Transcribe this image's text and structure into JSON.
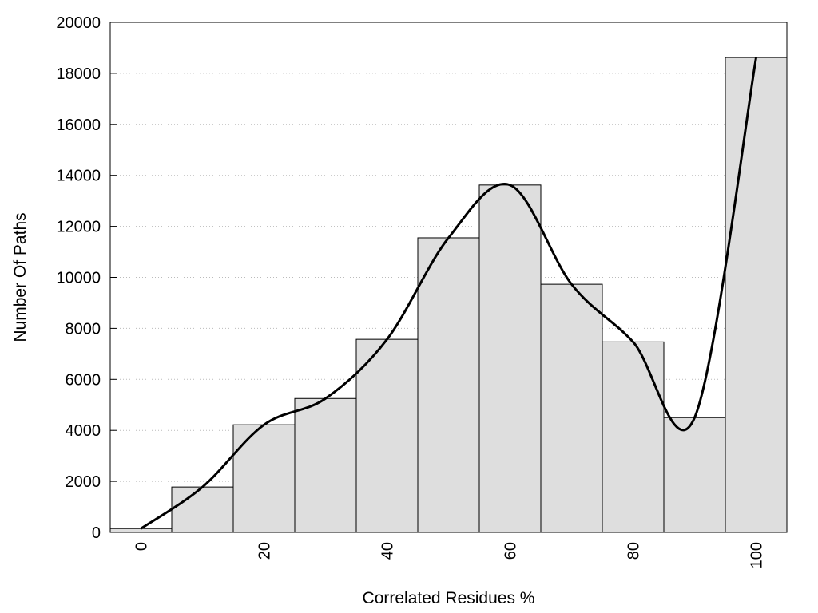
{
  "chart_data": {
    "type": "bar",
    "title": "",
    "xlabel": "Correlated Residues %",
    "ylabel": "Number Of Paths",
    "xlim": [
      -5,
      105
    ],
    "ylim": [
      0,
      20000
    ],
    "x_ticks": [
      0,
      20,
      40,
      60,
      80,
      100
    ],
    "y_ticks": [
      0,
      2000,
      4000,
      6000,
      8000,
      10000,
      12000,
      14000,
      16000,
      18000,
      20000
    ],
    "bin_width": 10,
    "grid": "horizontal dotted",
    "legend": "none",
    "series": [
      {
        "type": "bar",
        "x": [
          0,
          10,
          20,
          30,
          40,
          50,
          60,
          70,
          80,
          90,
          100
        ],
        "values": [
          150,
          1780,
          4220,
          5250,
          7570,
          11550,
          13620,
          9730,
          7470,
          4500,
          18620
        ]
      },
      {
        "type": "line",
        "smooth": true,
        "x": [
          0,
          10,
          20,
          30,
          40,
          50,
          60,
          70,
          80,
          90,
          100
        ],
        "values": [
          150,
          1780,
          4220,
          5250,
          7570,
          11550,
          13620,
          9730,
          7470,
          4500,
          18620
        ]
      }
    ],
    "colors": {
      "bar_fill": "#dedede",
      "bar_stroke": "#000000",
      "line": "#000000",
      "grid": "#bbbbbb"
    }
  }
}
